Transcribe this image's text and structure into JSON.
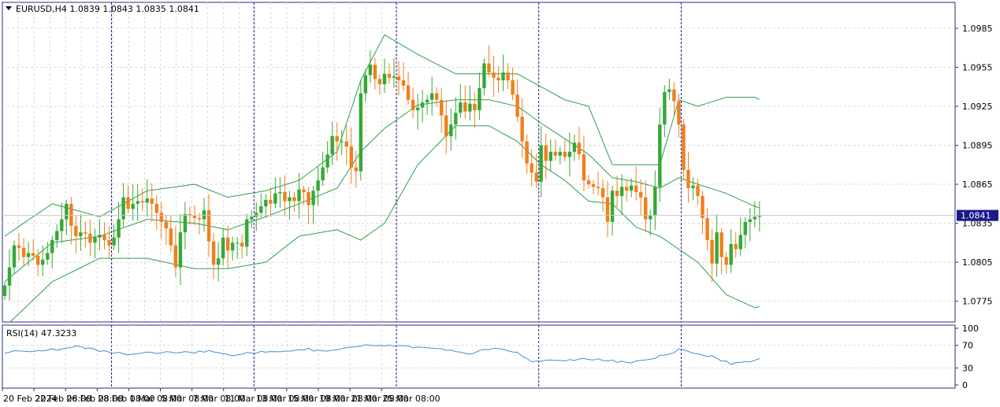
{
  "header": {
    "symbol_line": "EURUSD,H4  1.0839 1.0843 1.0835 1.0841",
    "rsi_line": "RSI(14) 47.3233"
  },
  "colors": {
    "bull": "#35a836",
    "bear": "#f07f1d",
    "bands": "#2e9e4e",
    "rsi": "#3e8fd6",
    "axis": "#2b2b80",
    "grid": "#d9d9d9",
    "price_tag": "#1a1a8c"
  },
  "chart_data": [
    {
      "type": "candlestick",
      "symbol": "EURUSD",
      "timeframe": "H4",
      "ohlc_header": {
        "open": 1.0839,
        "high": 1.0843,
        "low": 1.0835,
        "close": 1.0841
      },
      "current_price_label": "1.0841",
      "current_price": 1.0841,
      "ylim": [
        1.0759,
        1.1005
      ],
      "y_ticks": [
        "1.0985",
        "1.0955",
        "1.0925",
        "1.0895",
        "1.0865",
        "1.0835",
        "1.0805",
        "1.0775"
      ],
      "x_tick_labels": [
        "20 Feb 2024",
        "22 Feb 08:00",
        "26 Feb 08:00",
        "28 Feb 08:00",
        "1 Mar 08:00",
        "5 Mar 08:00",
        "7 Mar 08:00",
        "11 Mar 08:00",
        "13 Mar 08:00",
        "15 Mar 08:00",
        "19 Mar 08:00",
        "21 Mar 08:00",
        "25 Mar 08:00"
      ],
      "week_separators_after_candle": [
        22,
        52,
        82,
        112,
        142
      ],
      "closes": [
        1.0787,
        1.0801,
        1.0818,
        1.0816,
        1.0809,
        1.0812,
        1.081,
        1.0803,
        1.0807,
        1.0812,
        1.0822,
        1.0829,
        1.0838,
        1.085,
        1.0833,
        1.0825,
        1.0828,
        1.0827,
        1.082,
        1.0824,
        1.0826,
        1.0822,
        1.0818,
        1.0824,
        1.0838,
        1.0855,
        1.0846,
        1.085,
        1.0852,
        1.0851,
        1.0854,
        1.085,
        1.0843,
        1.0836,
        1.0831,
        1.0818,
        1.0801,
        1.0828,
        1.0842,
        1.0841,
        1.0839,
        1.0838,
        1.0845,
        1.0821,
        1.0803,
        1.0808,
        1.0824,
        1.0814,
        1.082,
        1.082,
        1.0817,
        1.0838,
        1.084,
        1.0843,
        1.0848,
        1.0853,
        1.085,
        1.0858,
        1.0859,
        1.0852,
        1.0855,
        1.0852,
        1.0861,
        1.0859,
        1.0849,
        1.086,
        1.0868,
        1.0878,
        1.0888,
        1.0902,
        1.0898,
        1.0898,
        1.0894,
        1.0878,
        1.0875,
        1.0935,
        1.0949,
        1.0957,
        1.0946,
        1.0942,
        1.095,
        1.0947,
        1.0948,
        1.0945,
        1.0941,
        1.093,
        1.0922,
        1.0924,
        1.0928,
        1.093,
        1.0935,
        1.093,
        1.0918,
        1.0902,
        1.0911,
        1.092,
        1.0928,
        1.0921,
        1.0927,
        1.0922,
        1.0939,
        1.0958,
        1.0951,
        1.0947,
        1.0945,
        1.0951,
        1.0945,
        1.0934,
        1.0917,
        1.0898,
        1.0881,
        1.0874,
        1.0867,
        1.0895,
        1.0883,
        1.089,
        1.0887,
        1.089,
        1.0886,
        1.089,
        1.0897,
        1.0888,
        1.0868,
        1.0865,
        1.0863,
        1.0862,
        1.0855,
        1.0836,
        1.086,
        1.0856,
        1.0863,
        1.086,
        1.0864,
        1.0859,
        1.0855,
        1.0838,
        1.0841,
        1.0863,
        1.0911,
        1.0936,
        1.0938,
        1.0929,
        1.0911,
        1.0876,
        1.0862,
        1.0864,
        1.0856,
        1.0839,
        1.0822,
        1.0804,
        1.0828,
        1.0809,
        1.0803,
        1.0819,
        1.0815,
        1.0826,
        1.0836,
        1.0838,
        1.084,
        1.0841
      ],
      "bands": {
        "upper": [
          [
            0,
            1.0825
          ],
          [
            10,
            1.085
          ],
          [
            20,
            1.084
          ],
          [
            30,
            1.086
          ],
          [
            40,
            1.0865
          ],
          [
            47,
            1.0855
          ],
          [
            55,
            1.086
          ],
          [
            62,
            1.0868
          ],
          [
            70,
            1.089
          ],
          [
            75,
            1.0945
          ],
          [
            80,
            1.098
          ],
          [
            87,
            1.0965
          ],
          [
            95,
            1.095
          ],
          [
            102,
            1.095
          ],
          [
            108,
            1.095
          ],
          [
            113,
            1.094
          ],
          [
            118,
            1.093
          ],
          [
            123,
            1.0925
          ],
          [
            128,
            1.088
          ],
          [
            133,
            1.088
          ],
          [
            138,
            1.088
          ],
          [
            142,
            1.093
          ],
          [
            146,
            1.0925
          ],
          [
            152,
            1.0932
          ],
          [
            158,
            1.0932
          ],
          [
            162,
            1.0925
          ]
        ],
        "middle": [
          [
            0,
            1.079
          ],
          [
            10,
            1.082
          ],
          [
            20,
            1.0825
          ],
          [
            30,
            1.0838
          ],
          [
            40,
            1.0835
          ],
          [
            47,
            1.083
          ],
          [
            55,
            1.084
          ],
          [
            62,
            1.085
          ],
          [
            70,
            1.0862
          ],
          [
            75,
            1.089
          ],
          [
            80,
            1.0908
          ],
          [
            87,
            1.0926
          ],
          [
            95,
            1.093
          ],
          [
            102,
            1.093
          ],
          [
            108,
            1.0925
          ],
          [
            113,
            1.0912
          ],
          [
            118,
            1.09
          ],
          [
            123,
            1.0888
          ],
          [
            128,
            1.087
          ],
          [
            133,
            1.0867
          ],
          [
            138,
            1.0862
          ],
          [
            142,
            1.087
          ],
          [
            146,
            1.0865
          ],
          [
            152,
            1.0858
          ],
          [
            158,
            1.0848
          ],
          [
            162,
            1.0843
          ]
        ],
        "lower": [
          [
            0,
            1.0755
          ],
          [
            10,
            1.079
          ],
          [
            20,
            1.0808
          ],
          [
            30,
            1.0808
          ],
          [
            40,
            1.08
          ],
          [
            47,
            1.08
          ],
          [
            55,
            1.0805
          ],
          [
            62,
            1.0825
          ],
          [
            70,
            1.083
          ],
          [
            75,
            1.0822
          ],
          [
            80,
            1.0835
          ],
          [
            87,
            1.088
          ],
          [
            95,
            1.091
          ],
          [
            102,
            1.091
          ],
          [
            108,
            1.0898
          ],
          [
            113,
            1.088
          ],
          [
            118,
            1.0868
          ],
          [
            123,
            1.0852
          ],
          [
            128,
            1.085
          ],
          [
            133,
            1.0832
          ],
          [
            138,
            1.0825
          ],
          [
            142,
            1.0815
          ],
          [
            146,
            1.0805
          ],
          [
            152,
            1.078
          ],
          [
            158,
            1.077
          ],
          [
            162,
            1.0773
          ]
        ]
      }
    },
    {
      "type": "line",
      "name": "RSI(14)",
      "value": 47.3233,
      "ylim": [
        0,
        100
      ],
      "y_ticks": [
        100,
        70,
        30,
        0
      ],
      "values": [
        [
          0,
          58
        ],
        [
          10,
          62
        ],
        [
          16,
          68
        ],
        [
          20,
          60
        ],
        [
          26,
          54
        ],
        [
          30,
          57
        ],
        [
          36,
          58
        ],
        [
          40,
          58
        ],
        [
          44,
          60
        ],
        [
          47,
          52
        ],
        [
          52,
          57
        ],
        [
          58,
          60
        ],
        [
          64,
          63
        ],
        [
          68,
          58
        ],
        [
          72,
          64
        ],
        [
          76,
          70
        ],
        [
          80,
          70
        ],
        [
          86,
          67
        ],
        [
          92,
          62
        ],
        [
          98,
          56
        ],
        [
          100,
          60
        ],
        [
          104,
          66
        ],
        [
          108,
          57
        ],
        [
          111,
          40
        ],
        [
          116,
          43
        ],
        [
          120,
          44
        ],
        [
          124,
          46
        ],
        [
          128,
          42
        ],
        [
          132,
          40
        ],
        [
          136,
          47
        ],
        [
          140,
          54
        ],
        [
          142,
          62
        ],
        [
          145,
          58
        ],
        [
          149,
          50
        ],
        [
          153,
          38
        ],
        [
          156,
          41
        ],
        [
          160,
          46
        ],
        [
          162,
          47
        ]
      ]
    }
  ]
}
